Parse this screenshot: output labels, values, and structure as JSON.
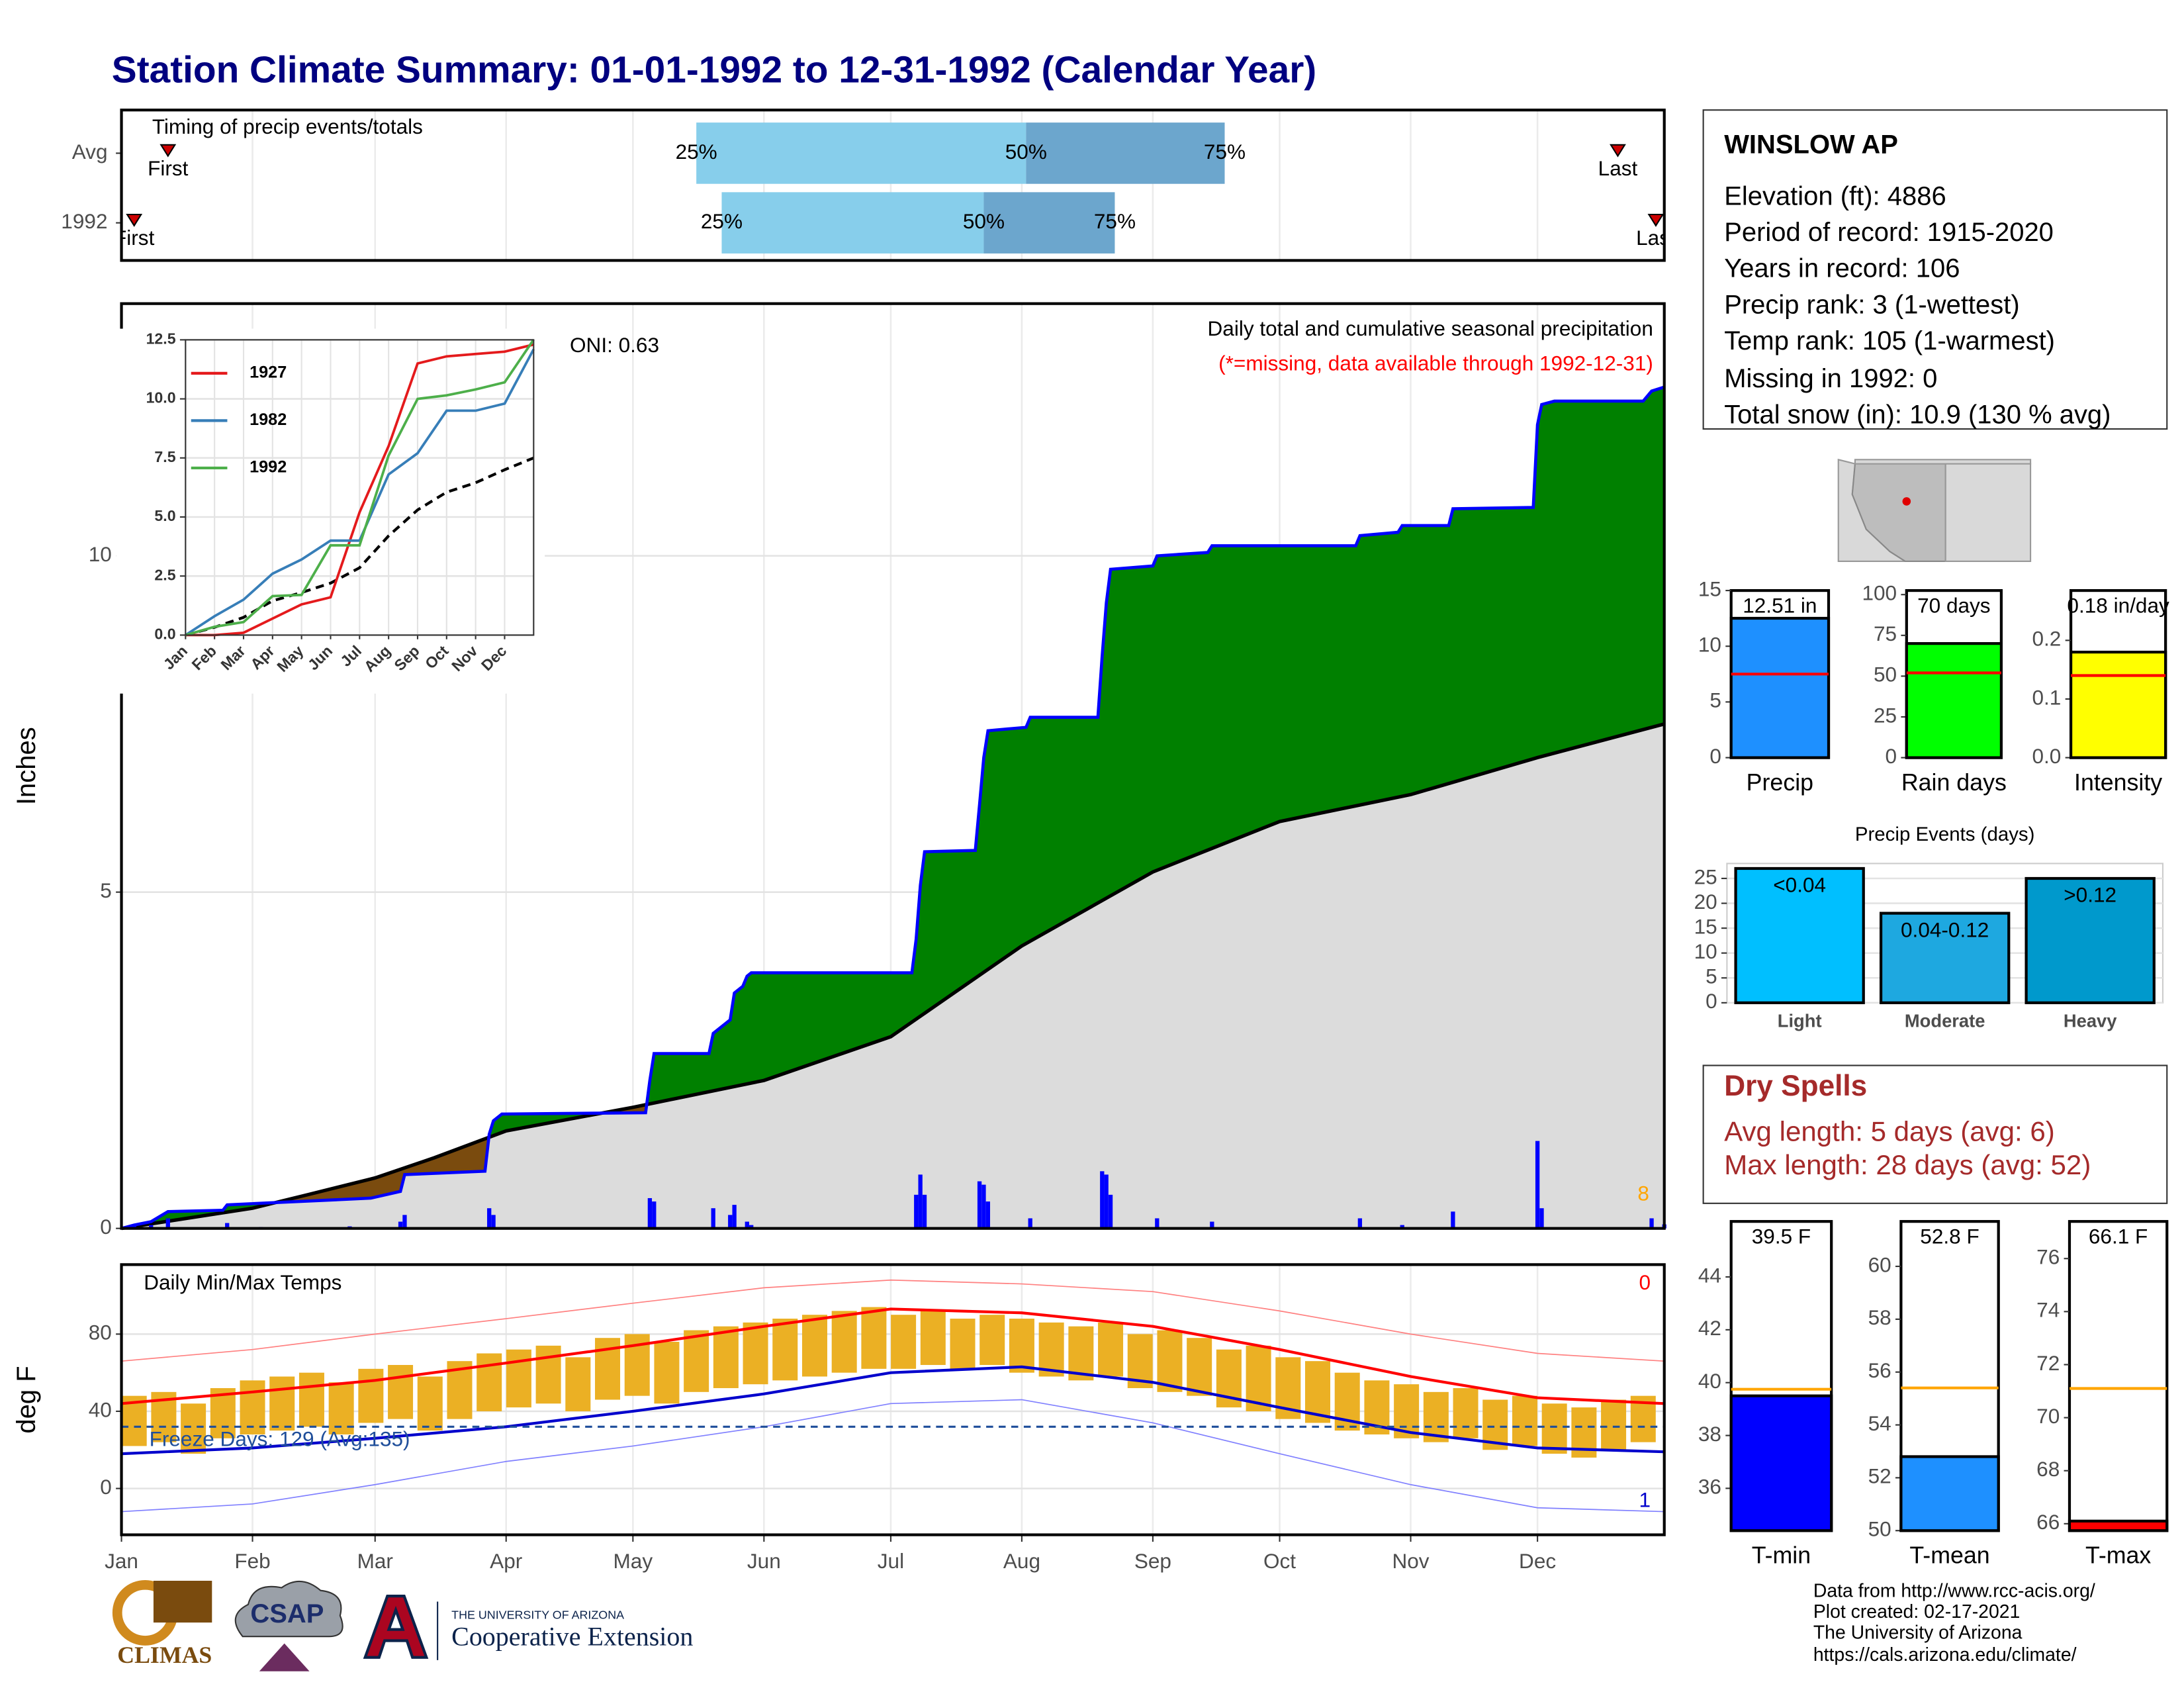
{
  "title": "Station Climate Summary: 01-01-1992 to 12-31-1992 (Calendar Year)",
  "chart_data": [
    {
      "type": "timing",
      "title": "Timing of precip events/totals",
      "categories": [
        "Avg",
        "1992"
      ],
      "xlim": [
        1,
        366
      ],
      "markers": [
        {
          "name": "First",
          "values": [
            12,
            4
          ]
        },
        {
          "name": "25%",
          "values": [
            137,
            143
          ]
        },
        {
          "name": "50%",
          "values": [
            215,
            205
          ]
        },
        {
          "name": "75%",
          "values": [
            262,
            236
          ]
        },
        {
          "name": "Last",
          "values": [
            355,
            364
          ]
        }
      ],
      "colors": [
        "#87ceeb",
        "#6ca6cd"
      ],
      "marker_color": "#cc0000"
    },
    {
      "type": "area",
      "title": "Daily total and cumulative seasonal precipitation",
      "subtitle": "(*=missing, data available through 1992-12-31)",
      "annotation": "ONI: 0.63",
      "corner_note": "8",
      "y_label": "Inches",
      "xlim": [
        1,
        366
      ],
      "ylim": [
        0,
        13.75
      ],
      "yticks": [
        0,
        5,
        10
      ],
      "grid": true,
      "cumulative": {
        "color": "#0000ff",
        "x": [
          1,
          4,
          8,
          12,
          25,
          26,
          60,
          67,
          68,
          87,
          88,
          89,
          91,
          125,
          126,
          127,
          140,
          141,
          145,
          146,
          148,
          149,
          150,
          188,
          189,
          190,
          191,
          203,
          204,
          205,
          206,
          215,
          216,
          232,
          233,
          234,
          235,
          245,
          246,
          258,
          259,
          293,
          294,
          303,
          304,
          315,
          316,
          335,
          336,
          337,
          340,
          361,
          363,
          366
        ],
        "values": [
          0,
          0.05,
          0.1,
          0.25,
          0.27,
          0.35,
          0.45,
          0.55,
          0.8,
          0.85,
          1.4,
          1.6,
          1.7,
          1.72,
          2.2,
          2.6,
          2.6,
          2.9,
          3.1,
          3.5,
          3.6,
          3.75,
          3.8,
          3.8,
          4.3,
          5.1,
          5.6,
          5.62,
          6.3,
          7.0,
          7.4,
          7.45,
          7.6,
          7.6,
          8.5,
          9.3,
          9.8,
          9.85,
          10.0,
          10.05,
          10.15,
          10.15,
          10.3,
          10.35,
          10.45,
          10.45,
          10.7,
          10.72,
          11.95,
          12.25,
          12.3,
          12.3,
          12.45,
          12.51
        ]
      },
      "average": {
        "color": "#000000",
        "x": [
          1,
          32,
          45,
          61,
          75,
          92,
          122,
          153,
          183,
          214,
          245,
          275,
          306,
          336,
          366
        ],
        "values": [
          0,
          0.3,
          0.5,
          0.75,
          1.05,
          1.45,
          1.8,
          2.2,
          2.85,
          4.2,
          5.3,
          6.05,
          6.45,
          7.0,
          7.5
        ]
      },
      "daily": {
        "color": "#0000ff",
        "x": [
          4,
          8,
          12,
          26,
          34,
          55,
          67,
          68,
          88,
          89,
          126,
          127,
          141,
          145,
          146,
          149,
          150,
          189,
          190,
          191,
          204,
          205,
          206,
          216,
          233,
          234,
          235,
          246,
          259,
          294,
          304,
          316,
          336,
          337,
          363,
          366
        ],
        "values": [
          0.05,
          0.05,
          0.15,
          0.08,
          0.02,
          0.03,
          0.1,
          0.2,
          0.3,
          0.2,
          0.45,
          0.4,
          0.3,
          0.2,
          0.35,
          0.1,
          0.05,
          0.5,
          0.8,
          0.5,
          0.7,
          0.65,
          0.4,
          0.15,
          0.85,
          0.8,
          0.5,
          0.15,
          0.1,
          0.15,
          0.05,
          0.25,
          1.3,
          0.3,
          0.15,
          0.06
        ]
      },
      "above_color": "#008000",
      "below_color": "#7a4b0e",
      "average_fill": "#dcdcdc",
      "note_color": "#ffa500",
      "subtitle_color": "#ff0000"
    },
    {
      "type": "line",
      "xlim": [
        0,
        12
      ],
      "ylim": [
        0,
        12.5
      ],
      "xticks": [
        {
          "value": 0,
          "label": "Jan"
        },
        {
          "value": 1,
          "label": "Feb"
        },
        {
          "value": 2,
          "label": "Mar"
        },
        {
          "value": 3,
          "label": "Apr"
        },
        {
          "value": 4,
          "label": "May"
        },
        {
          "value": 5,
          "label": "Jun"
        },
        {
          "value": 6,
          "label": "Jul"
        },
        {
          "value": 7,
          "label": "Aug"
        },
        {
          "value": 8,
          "label": "Sep"
        },
        {
          "value": 9,
          "label": "Oct"
        },
        {
          "value": 10,
          "label": "Nov"
        },
        {
          "value": 11,
          "label": "Dec"
        }
      ],
      "yticks": [
        {
          "value": 0,
          "label": "0.0"
        },
        2.5,
        {
          "value": 5,
          "label": "5.0"
        },
        7.5,
        {
          "value": 10,
          "label": "10.0"
        },
        12.5
      ],
      "grid": true,
      "x": [
        0,
        1,
        2,
        3,
        4,
        5,
        6,
        7,
        8,
        9,
        10,
        11,
        12
      ],
      "series": [
        {
          "name": "1927",
          "color": "#e41a1c",
          "values": [
            0,
            0,
            0.1,
            0.7,
            1.3,
            1.6,
            5.2,
            8.0,
            11.5,
            11.8,
            11.9,
            12.0,
            12.3
          ]
        },
        {
          "name": "1982",
          "color": "#377eb8",
          "values": [
            0,
            0.8,
            1.5,
            2.6,
            3.2,
            4.0,
            4.0,
            6.8,
            7.7,
            9.5,
            9.5,
            9.8,
            12.1
          ]
        },
        {
          "name": "1992",
          "color": "#4daf4a",
          "values": [
            0,
            0.35,
            0.55,
            1.65,
            1.7,
            3.8,
            3.8,
            7.6,
            10.0,
            10.15,
            10.4,
            10.7,
            12.51
          ]
        }
      ],
      "average": {
        "color": "#000000",
        "values": [
          0,
          0.33,
          0.75,
          1.45,
          1.8,
          2.2,
          2.85,
          4.2,
          5.3,
          6.05,
          6.45,
          7.0,
          7.5
        ]
      }
    },
    {
      "type": "temperature",
      "title": "Daily Min/Max Temps",
      "y_label": "deg F",
      "annotation": "Freeze Days: 129 (Avg:135)",
      "corner_note": "0",
      "corner_note_low": "1",
      "xlim": [
        1,
        366
      ],
      "ylim": [
        -24,
        116
      ],
      "yticks": [
        0,
        40,
        80
      ],
      "grid": true,
      "freeze": 32,
      "xticks": [
        {
          "value": 1,
          "label": "Jan"
        },
        {
          "value": 32,
          "label": "Feb"
        },
        {
          "value": 61,
          "label": "Mar"
        },
        {
          "value": 92,
          "label": "Apr"
        },
        {
          "value": 122,
          "label": "May"
        },
        {
          "value": 153,
          "label": "Jun"
        },
        {
          "value": 183,
          "label": "Jul"
        },
        {
          "value": 214,
          "label": "Aug"
        },
        {
          "value": 245,
          "label": "Sep"
        },
        {
          "value": 275,
          "label": "Oct"
        },
        {
          "value": 306,
          "label": "Nov"
        },
        {
          "value": 336,
          "label": "Dec"
        }
      ],
      "x": [
        4,
        11,
        18,
        25,
        32,
        39,
        46,
        53,
        60,
        67,
        74,
        81,
        88,
        95,
        102,
        109,
        116,
        123,
        130,
        137,
        144,
        151,
        158,
        165,
        172,
        179,
        186,
        193,
        200,
        207,
        214,
        221,
        228,
        235,
        242,
        249,
        256,
        263,
        270,
        277,
        284,
        291,
        298,
        305,
        312,
        319,
        326,
        333,
        340,
        347,
        354,
        361
      ],
      "tmax": [
        48,
        50,
        44,
        52,
        56,
        58,
        60,
        55,
        62,
        64,
        58,
        66,
        70,
        72,
        74,
        68,
        78,
        80,
        76,
        82,
        84,
        86,
        88,
        90,
        92,
        94,
        90,
        92,
        88,
        90,
        88,
        86,
        84,
        86,
        80,
        82,
        78,
        72,
        74,
        68,
        66,
        60,
        56,
        54,
        50,
        52,
        46,
        48,
        44,
        42,
        46,
        48
      ],
      "tmin": [
        22,
        24,
        18,
        26,
        28,
        30,
        32,
        28,
        34,
        36,
        30,
        36,
        40,
        42,
        44,
        40,
        46,
        48,
        44,
        50,
        52,
        54,
        56,
        58,
        60,
        62,
        62,
        64,
        62,
        64,
        60,
        58,
        56,
        58,
        52,
        50,
        48,
        42,
        40,
        36,
        34,
        30,
        28,
        26,
        24,
        26,
        20,
        22,
        18,
        16,
        20,
        24
      ],
      "normals": {
        "x": [
          1,
          32,
          61,
          92,
          122,
          153,
          183,
          214,
          245,
          275,
          306,
          336,
          366
        ],
        "tmax": [
          44,
          50,
          56,
          65,
          74,
          84,
          93,
          91,
          84,
          72,
          58,
          47,
          44
        ],
        "tmin": [
          18,
          21,
          26,
          32,
          40,
          49,
          60,
          63,
          55,
          42,
          29,
          21,
          19
        ],
        "record_high": [
          66,
          72,
          80,
          88,
          96,
          104,
          108,
          106,
          102,
          92,
          80,
          70,
          66
        ],
        "record_low": [
          -12,
          -8,
          2,
          14,
          22,
          32,
          44,
          46,
          34,
          18,
          2,
          -10,
          -12
        ]
      },
      "bar_color": "#ebb024",
      "tmax_color": "#ff0000",
      "tmin_color": "#0000cc",
      "record_high_color": "#ff8080",
      "record_low_color": "#8080ff",
      "freeze_color": "#1f4e9a"
    },
    {
      "type": "bar",
      "categories": [
        "Precip"
      ],
      "values": [
        12.51
      ],
      "value_labels": [
        "12.51 in"
      ],
      "color": "#1e90ff",
      "ylim": [
        0,
        15
      ],
      "yticks": [
        0,
        5,
        10,
        15
      ],
      "average": 7.5,
      "average_color": "#ff0000"
    },
    {
      "type": "bar",
      "categories": [
        "Rain days"
      ],
      "values": [
        70
      ],
      "value_labels": [
        "70 days"
      ],
      "color": "#00ff00",
      "ylim": [
        0,
        102.5
      ],
      "yticks": [
        0,
        25,
        50,
        75,
        100
      ],
      "average": 52,
      "average_color": "#ff0000"
    },
    {
      "type": "bar",
      "categories": [
        "Intensity"
      ],
      "values": [
        0.18
      ],
      "value_labels": [
        "0.18 in/day"
      ],
      "color": "#ffff00",
      "ylim": [
        0,
        0.285
      ],
      "yticks": [
        {
          "value": 0,
          "label": "0.0"
        },
        {
          "value": 0.1,
          "label": "0.1"
        },
        {
          "value": 0.2,
          "label": "0.2"
        }
      ],
      "average": 0.14,
      "average_color": "#ff0000"
    },
    {
      "type": "bar",
      "title": "Precip Events (days)",
      "categories": [
        "Light",
        "Moderate",
        "Heavy"
      ],
      "values": [
        27,
        18,
        25
      ],
      "value_labels": [
        "<0.04",
        "0.04-0.12",
        ">0.12"
      ],
      "colors": [
        "#00bfff",
        "#1ea8e0",
        "#0099cc"
      ],
      "ylim": [
        0,
        28
      ],
      "yticks": [
        0,
        5,
        10,
        15,
        20,
        25
      ],
      "grid": true
    },
    {
      "type": "bar",
      "categories": [
        "T-min"
      ],
      "values": [
        39.5
      ],
      "value_labels": [
        "39.5 F"
      ],
      "color": "#0000ff",
      "ylim": [
        34.4,
        46.1
      ],
      "yticks": [
        36,
        38,
        40,
        42,
        44
      ],
      "average": 39.75,
      "average_color": "#ffa500"
    },
    {
      "type": "bar",
      "categories": [
        "T-mean"
      ],
      "values": [
        52.8
      ],
      "value_labels": [
        "52.8 F"
      ],
      "color": "#1e90ff",
      "ylim": [
        50,
        61.7
      ],
      "yticks": [
        50,
        52,
        54,
        56,
        58,
        60
      ],
      "average": 55.4,
      "average_color": "#ffa500"
    },
    {
      "type": "bar",
      "categories": [
        "T-max"
      ],
      "values": [
        66.1
      ],
      "value_labels": [
        "66.1 F"
      ],
      "color": "#ff0000",
      "ylim": [
        65.74,
        77.4
      ],
      "yticks": [
        66,
        68,
        70,
        72,
        74,
        76
      ],
      "average": 71.1,
      "average_color": "#ffa500"
    }
  ],
  "station": {
    "name": "WINSLOW AP",
    "lines": [
      "Elevation (ft): 4886",
      "Period of record: 1915-2020",
      "Years in record: 106",
      "Precip rank: 3 (1-wettest)",
      "Temp rank: 105 (1-warmest)",
      "Missing in 1992: 0",
      "Total snow (in): 10.9 (130 % avg)"
    ]
  },
  "dry_spells": {
    "title": "Dry Spells",
    "lines": [
      "Avg length: 5 days (avg: 6)",
      "Max length: 28 days (avg: 52)"
    ]
  },
  "footer": [
    "Data from http://www.rcc-acis.org/",
    "Plot created: 02-17-2021",
    "The University of Arizona",
    "https://cals.arizona.edu/climate/"
  ],
  "logos": {
    "climas": "CLIMAS",
    "csap": "CSAP",
    "university": "THE UNIVERSITY OF ARIZONA",
    "extension": "Cooperative Extension"
  }
}
